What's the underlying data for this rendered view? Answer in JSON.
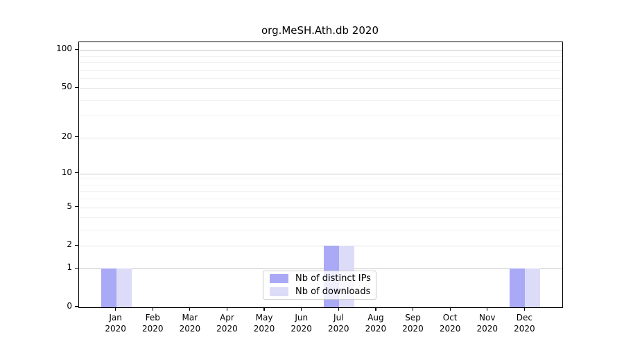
{
  "title": "org.MeSH.Ath.db 2020",
  "chart_data": {
    "type": "bar",
    "title": "org.MeSH.Ath.db 2020",
    "scale": "log1p",
    "months": [
      "Jan",
      "Feb",
      "Mar",
      "Apr",
      "May",
      "Jun",
      "Jul",
      "Aug",
      "Sep",
      "Oct",
      "Nov",
      "Dec"
    ],
    "year": "2020",
    "categories": [
      "Jan 2020",
      "Feb 2020",
      "Mar 2020",
      "Apr 2020",
      "May 2020",
      "Jun 2020",
      "Jul 2020",
      "Aug 2020",
      "Sep 2020",
      "Oct 2020",
      "Nov 2020",
      "Dec 2020"
    ],
    "series": [
      {
        "name": "Nb of distinct IPs",
        "color": "#a9a9f6",
        "values": [
          1,
          0,
          0,
          0,
          0,
          0,
          2,
          0,
          0,
          0,
          0,
          1
        ]
      },
      {
        "name": "Nb of downloads",
        "color": "#dcdcf8",
        "values": [
          1,
          0,
          0,
          0,
          0,
          0,
          2,
          0,
          0,
          0,
          0,
          1
        ]
      }
    ],
    "xlabel": "",
    "ylabel": "",
    "yticks": [
      0,
      1,
      2,
      5,
      10,
      20,
      50,
      100
    ],
    "ylim": [
      0,
      115
    ],
    "grid": true,
    "legend_position": "bottom-center"
  },
  "colors": {
    "distinct_ips": "#a9a9f6",
    "downloads": "#dcdcf8",
    "axis": "#000000",
    "grid_decade": "#c6c6c6",
    "grid_major": "#e3e3e3",
    "grid_minor": "#f0f0f0"
  }
}
